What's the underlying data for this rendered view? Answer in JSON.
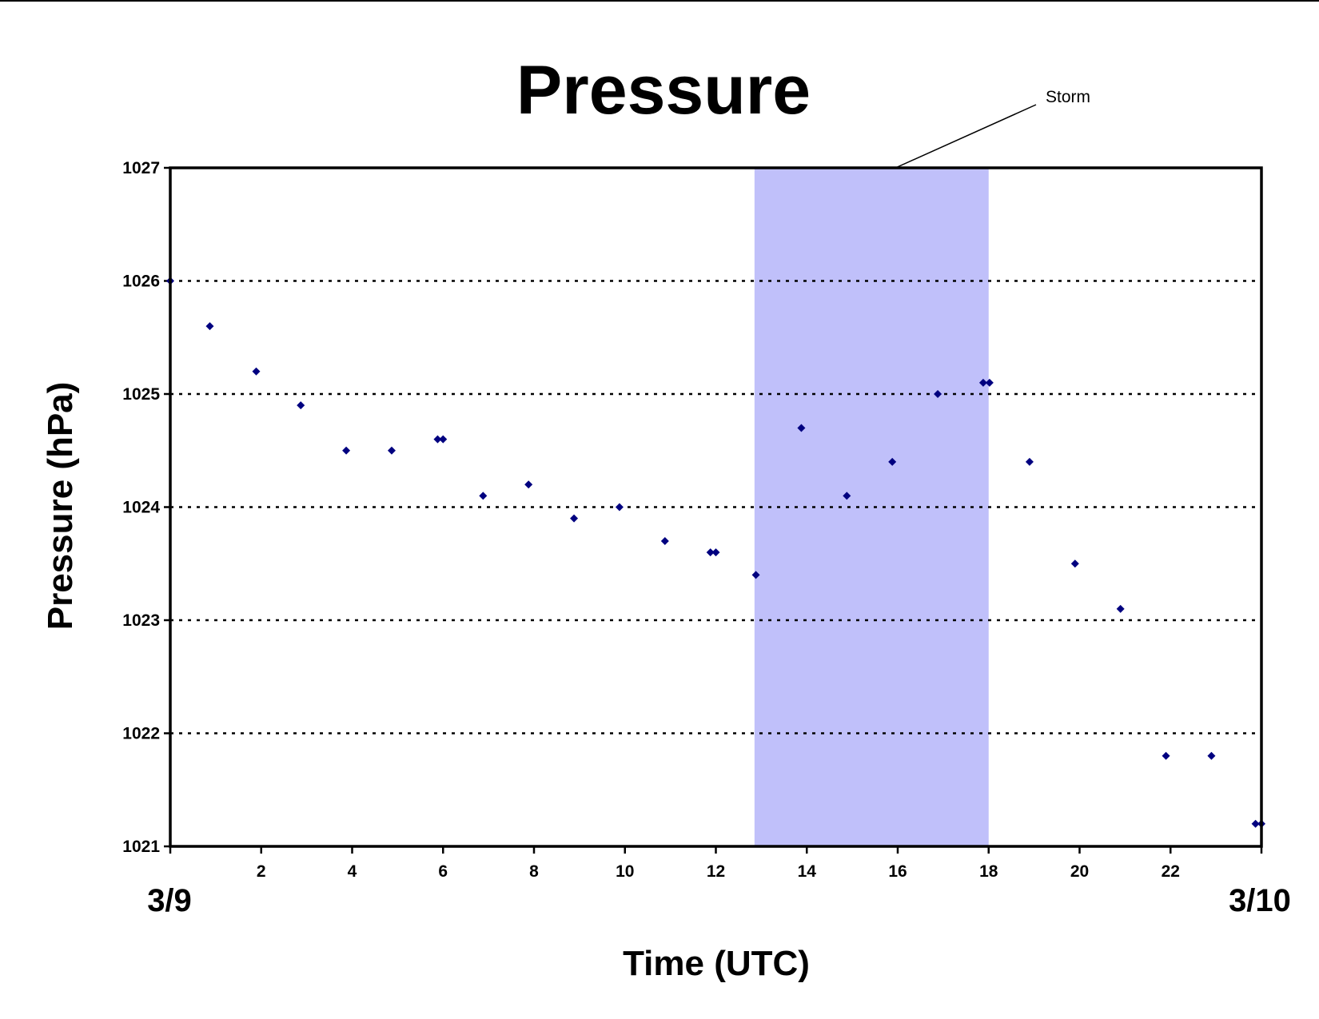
{
  "chart_data": {
    "type": "scatter",
    "title": "Pressure",
    "xlabel": "Time (UTC)",
    "ylabel": "Pressure (hPa)",
    "xlim": [
      0,
      24
    ],
    "ylim": [
      1021,
      1027
    ],
    "x_ticks": [
      2,
      4,
      6,
      8,
      10,
      12,
      14,
      16,
      18,
      20,
      22
    ],
    "y_ticks": [
      1021,
      1022,
      1023,
      1024,
      1025,
      1026,
      1027
    ],
    "date_labels": {
      "start": "3/9",
      "end": "3/10"
    },
    "grid": "horizontal dotted",
    "legend": "none",
    "marker_color": "#000080",
    "shaded_region": {
      "label": "Storm",
      "x_start": 12.85,
      "x_end": 18,
      "color": "#c0c0fa"
    },
    "series": [
      {
        "points": [
          [
            0,
            1026.0
          ],
          [
            0.87,
            1025.6
          ],
          [
            1.89,
            1025.2
          ],
          [
            2.87,
            1024.9
          ],
          [
            3.87,
            1024.5
          ],
          [
            4.87,
            1024.5
          ],
          [
            5.88,
            1024.6
          ],
          [
            6.0,
            1024.6
          ],
          [
            6.88,
            1024.1
          ],
          [
            7.88,
            1024.2
          ],
          [
            8.88,
            1023.9
          ],
          [
            9.88,
            1024.0
          ],
          [
            10.88,
            1023.7
          ],
          [
            11.88,
            1023.6
          ],
          [
            12.0,
            1023.6
          ],
          [
            12.88,
            1023.4
          ],
          [
            13.88,
            1024.7
          ],
          [
            14.88,
            1024.1
          ],
          [
            15.88,
            1024.4
          ],
          [
            16.88,
            1025.0
          ],
          [
            17.88,
            1025.1
          ],
          [
            18.02,
            1025.1
          ],
          [
            18.9,
            1024.4
          ],
          [
            19.9,
            1023.5
          ],
          [
            20.9,
            1023.1
          ],
          [
            21.9,
            1021.8
          ],
          [
            22.9,
            1021.8
          ],
          [
            23.87,
            1021.2
          ],
          [
            24.0,
            1021.2
          ]
        ]
      }
    ]
  }
}
